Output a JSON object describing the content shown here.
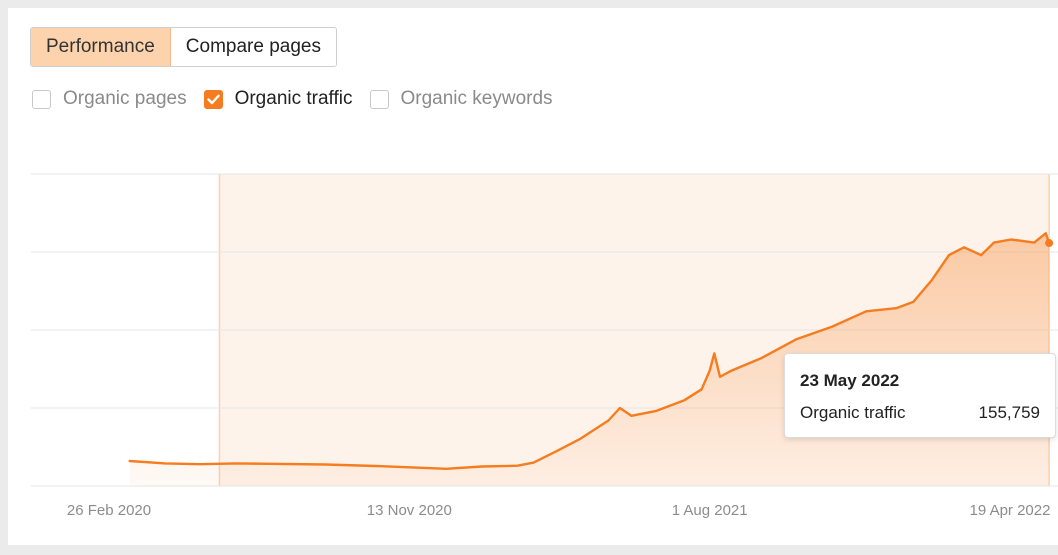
{
  "tabs": [
    {
      "label": "Performance",
      "active": true
    },
    {
      "label": "Compare pages",
      "active": false
    }
  ],
  "checkboxes": [
    {
      "label": "Organic pages",
      "checked": false
    },
    {
      "label": "Organic traffic",
      "checked": true
    },
    {
      "label": "Organic keywords",
      "checked": false
    }
  ],
  "tooltip": {
    "date": "23 May 2022",
    "metric": "Organic traffic",
    "value": "155,759"
  },
  "colors": {
    "accent": "#f57c1f",
    "active_tab": "#fdd3ad",
    "area_fill": "#fdefe4",
    "grid": "#e6e6e6"
  },
  "chart_data": {
    "type": "area",
    "title": "",
    "xlabel": "",
    "ylabel": "",
    "grid": true,
    "x_ticks": [
      "26 Feb 2020",
      "13 Nov 2020",
      "1 Aug 2021",
      "19 Apr 2022"
    ],
    "highlight_range": [
      "2020-06-01",
      "2022-05-23"
    ],
    "series": [
      {
        "name": "Organic traffic",
        "points": [
          [
            "2020-03-15",
            16000
          ],
          [
            "2020-04-15",
            14500
          ],
          [
            "2020-05-15",
            14000
          ],
          [
            "2020-06-15",
            14500
          ],
          [
            "2020-07-15",
            14200
          ],
          [
            "2020-09-01",
            13800
          ],
          [
            "2020-10-15",
            12800
          ],
          [
            "2020-11-13",
            12000
          ],
          [
            "2020-12-15",
            11000
          ],
          [
            "2021-01-15",
            12500
          ],
          [
            "2021-02-15",
            13000
          ],
          [
            "2021-03-01",
            15000
          ],
          [
            "2021-03-20",
            22000
          ],
          [
            "2021-04-10",
            30000
          ],
          [
            "2021-05-05",
            42000
          ],
          [
            "2021-05-15",
            50000
          ],
          [
            "2021-05-25",
            45000
          ],
          [
            "2021-06-15",
            48000
          ],
          [
            "2021-07-10",
            55000
          ],
          [
            "2021-07-25",
            62000
          ],
          [
            "2021-08-01",
            74000
          ],
          [
            "2021-08-05",
            85000
          ],
          [
            "2021-08-10",
            70000
          ],
          [
            "2021-08-20",
            74000
          ],
          [
            "2021-09-15",
            82000
          ],
          [
            "2021-10-15",
            94000
          ],
          [
            "2021-11-15",
            102000
          ],
          [
            "2021-12-15",
            112000
          ],
          [
            "2022-01-10",
            114000
          ],
          [
            "2022-01-25",
            118000
          ],
          [
            "2022-02-10",
            132000
          ],
          [
            "2022-02-25",
            148000
          ],
          [
            "2022-03-10",
            153000
          ],
          [
            "2022-03-25",
            148000
          ],
          [
            "2022-04-05",
            156000
          ],
          [
            "2022-04-20",
            158000
          ],
          [
            "2022-05-10",
            156000
          ],
          [
            "2022-05-20",
            162000
          ],
          [
            "2022-05-23",
            155759
          ]
        ]
      }
    ]
  }
}
